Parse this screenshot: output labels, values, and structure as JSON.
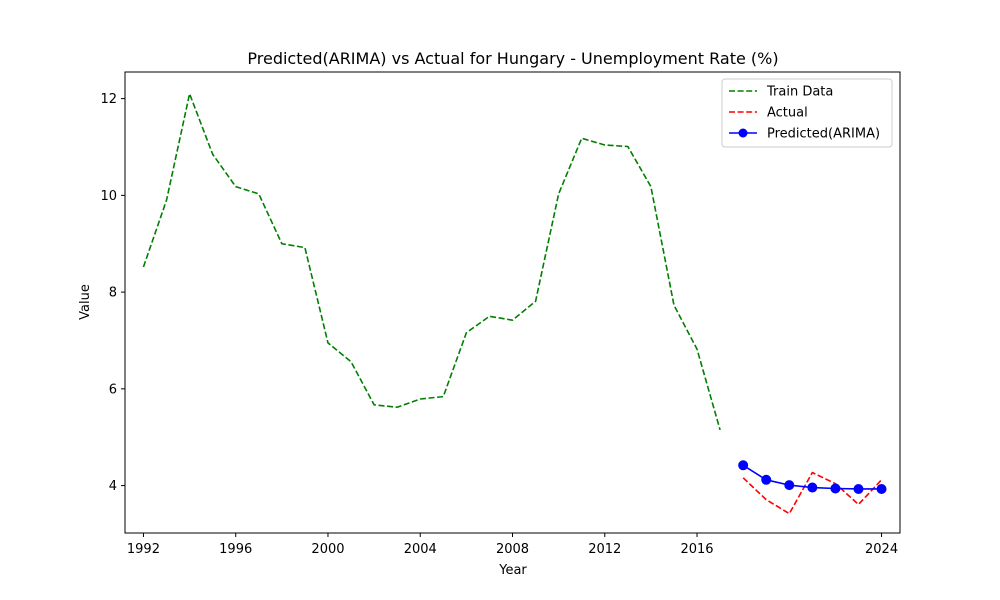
{
  "chart_data": {
    "type": "line",
    "title": "Predicted(ARIMA) vs Actual for Hungary - Unemployment Rate (%)",
    "xlabel": "Year",
    "ylabel": "Value",
    "xlim": [
      1991.2,
      2024.8
    ],
    "ylim": [
      3.02,
      12.55
    ],
    "xticks": [
      1992,
      1996,
      2000,
      2004,
      2008,
      2012,
      2016,
      2024
    ],
    "xtick_labels": [
      "1992",
      "1996",
      "2000",
      "2004",
      "2008",
      "2012",
      "2016",
      "2024"
    ],
    "yticks": [
      4,
      6,
      8,
      10,
      12
    ],
    "ytick_labels": [
      "4",
      "6",
      "8",
      "10",
      "12"
    ],
    "grid": false,
    "legend_position": "top-right",
    "series": [
      {
        "name": "Train Data",
        "color": "#008000",
        "style": "dashed",
        "marker": "none",
        "x": [
          1992,
          1993,
          1994,
          1995,
          1996,
          1997,
          1998,
          1999,
          2000,
          2001,
          2002,
          2003,
          2004,
          2005,
          2006,
          2007,
          2008,
          2009,
          2010,
          2011,
          2012,
          2013,
          2014,
          2015,
          2016,
          2017
        ],
        "y": [
          8.52,
          9.9,
          12.1,
          10.85,
          10.18,
          10.03,
          9.0,
          8.92,
          6.95,
          6.56,
          5.67,
          5.62,
          5.79,
          5.84,
          7.16,
          7.5,
          7.42,
          7.81,
          10.03,
          11.18,
          11.04,
          11.01,
          10.18,
          7.73,
          6.82,
          5.15
        ]
      },
      {
        "name": "Actual",
        "color": "#ff0000",
        "style": "dashed",
        "marker": "none",
        "x": [
          2018,
          2019,
          2020,
          2021,
          2022,
          2023,
          2024
        ],
        "y": [
          4.16,
          3.71,
          3.42,
          4.27,
          4.04,
          3.61,
          4.12
        ]
      },
      {
        "name": "Predicted(ARIMA)",
        "color": "#0000ff",
        "style": "solid",
        "marker": "circle",
        "x": [
          2018,
          2019,
          2020,
          2021,
          2022,
          2023,
          2024
        ],
        "y": [
          4.42,
          4.12,
          4.01,
          3.96,
          3.94,
          3.93,
          3.93
        ]
      }
    ]
  }
}
